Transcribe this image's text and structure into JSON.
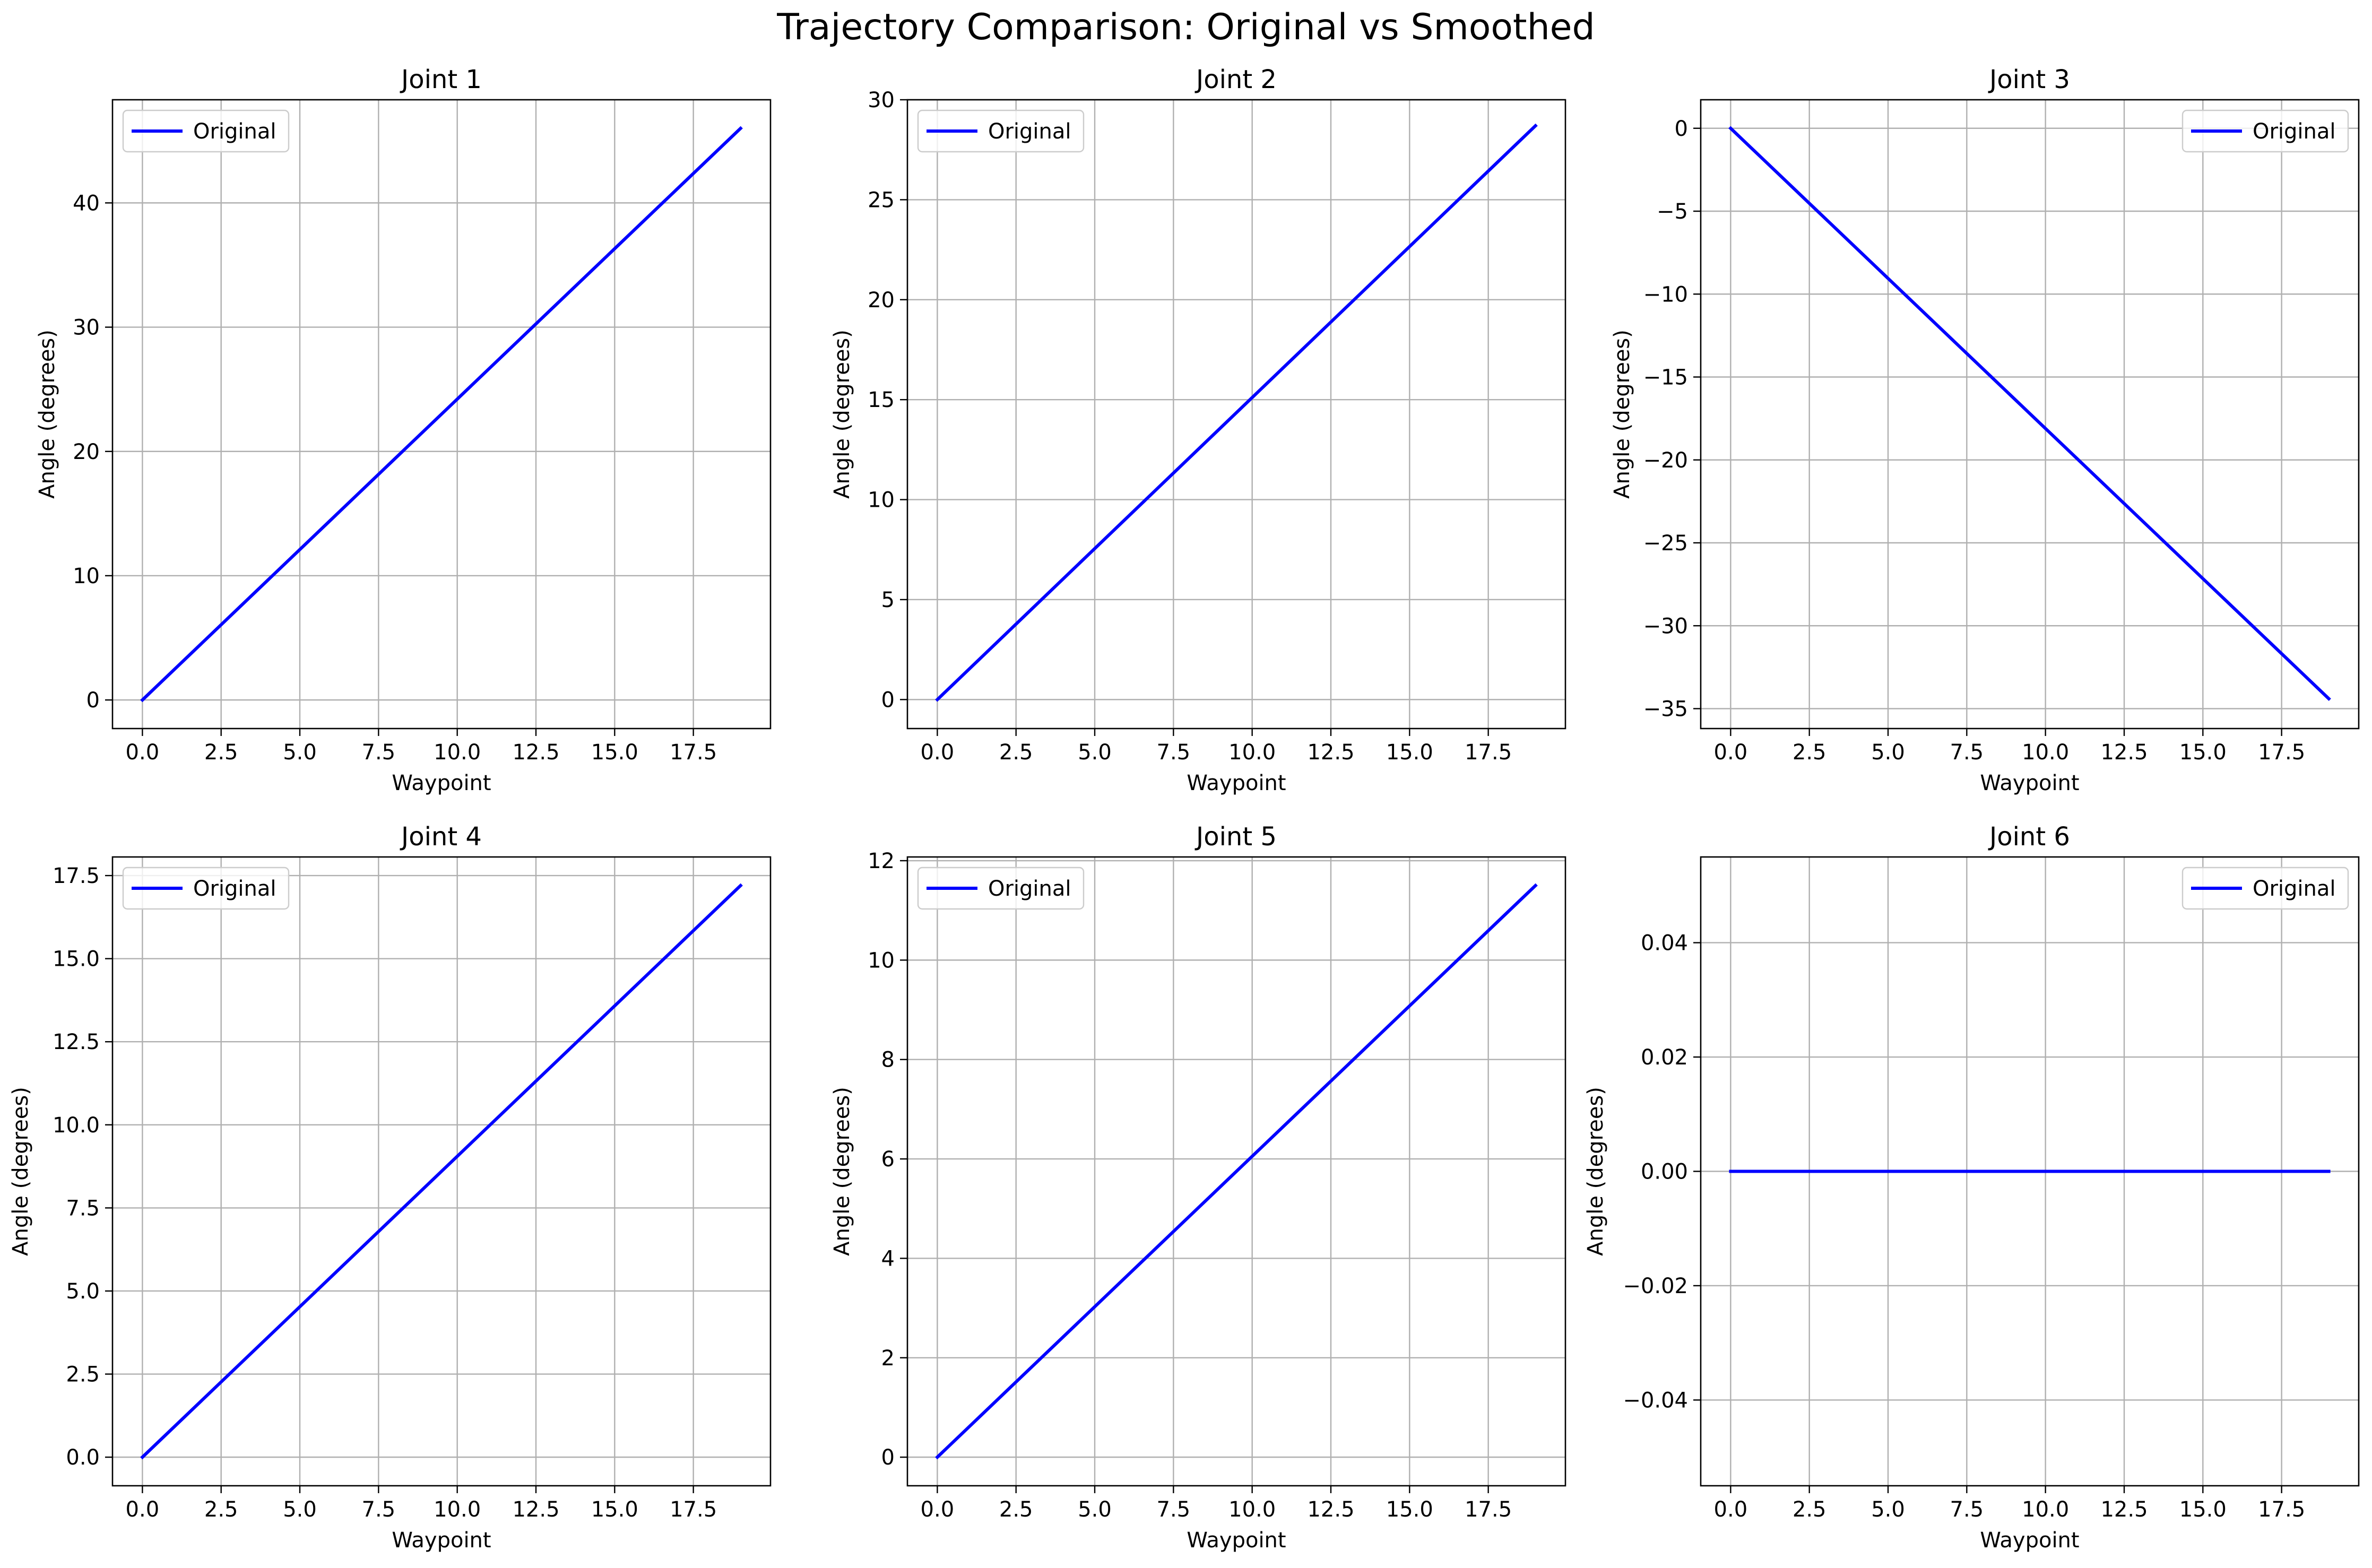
{
  "figure": {
    "title": "Trajectory Comparison: Original vs Smoothed"
  },
  "colors": {
    "series": "#0000ff",
    "grid": "#b0b0b0",
    "axes": "#000000",
    "legend_border": "#cccccc"
  },
  "chart_data": [
    {
      "type": "line",
      "title": "Joint 1",
      "xlabel": "Waypoint",
      "ylabel": "Angle (degrees)",
      "xlim": [
        -0.95,
        19.95
      ],
      "ylim": [
        -2.3,
        48.3
      ],
      "xticks": [
        0,
        2.5,
        5,
        7.5,
        10,
        12.5,
        15,
        17.5
      ],
      "xtick_labels": [
        "0.0",
        "2.5",
        "5.0",
        "7.5",
        "10.0",
        "12.5",
        "15.0",
        "17.5"
      ],
      "yticks": [
        0,
        10,
        20,
        30,
        40
      ],
      "ytick_labels": [
        "0",
        "10",
        "20",
        "30",
        "40"
      ],
      "grid": true,
      "legend": "upper-left",
      "series": [
        {
          "name": "Original",
          "x": [
            0,
            19
          ],
          "y": [
            0,
            46
          ]
        }
      ]
    },
    {
      "type": "line",
      "title": "Joint 2",
      "xlabel": "Waypoint",
      "ylabel": "Angle (degrees)",
      "xlim": [
        -0.95,
        19.95
      ],
      "ylim": [
        -1.45,
        30.0
      ],
      "xticks": [
        0,
        2.5,
        5,
        7.5,
        10,
        12.5,
        15,
        17.5
      ],
      "xtick_labels": [
        "0.0",
        "2.5",
        "5.0",
        "7.5",
        "10.0",
        "12.5",
        "15.0",
        "17.5"
      ],
      "yticks": [
        0,
        5,
        10,
        15,
        20,
        25,
        30
      ],
      "ytick_labels": [
        "0",
        "5",
        "10",
        "15",
        "20",
        "25",
        "30"
      ],
      "grid": true,
      "legend": "upper-left",
      "series": [
        {
          "name": "Original",
          "x": [
            0,
            19
          ],
          "y": [
            0,
            28.7
          ]
        }
      ]
    },
    {
      "type": "line",
      "title": "Joint 3",
      "xlabel": "Waypoint",
      "ylabel": "Angle (degrees)",
      "xlim": [
        -0.95,
        19.95
      ],
      "ylim": [
        -36.2,
        1.72
      ],
      "xticks": [
        0,
        2.5,
        5,
        7.5,
        10,
        12.5,
        15,
        17.5
      ],
      "xtick_labels": [
        "0.0",
        "2.5",
        "5.0",
        "7.5",
        "10.0",
        "12.5",
        "15.0",
        "17.5"
      ],
      "yticks": [
        0,
        -5,
        -10,
        -15,
        -20,
        -25,
        -30,
        -35
      ],
      "ytick_labels": [
        "0",
        "−5",
        "−10",
        "−15",
        "−20",
        "−25",
        "−30",
        "−35"
      ],
      "grid": true,
      "legend": "upper-right",
      "series": [
        {
          "name": "Original",
          "x": [
            0,
            19
          ],
          "y": [
            0,
            -34.4
          ]
        }
      ]
    },
    {
      "type": "line",
      "title": "Joint 4",
      "xlabel": "Waypoint",
      "ylabel": "Angle (degrees)",
      "xlim": [
        -0.95,
        19.95
      ],
      "ylim": [
        -0.86,
        18.06
      ],
      "xticks": [
        0,
        2.5,
        5,
        7.5,
        10,
        12.5,
        15,
        17.5
      ],
      "xtick_labels": [
        "0.0",
        "2.5",
        "5.0",
        "7.5",
        "10.0",
        "12.5",
        "15.0",
        "17.5"
      ],
      "yticks": [
        0,
        2.5,
        5,
        7.5,
        10,
        12.5,
        15,
        17.5
      ],
      "ytick_labels": [
        "0.0",
        "2.5",
        "5.0",
        "7.5",
        "10.0",
        "12.5",
        "15.0",
        "17.5"
      ],
      "grid": true,
      "legend": "upper-left",
      "series": [
        {
          "name": "Original",
          "x": [
            0,
            19
          ],
          "y": [
            0,
            17.2
          ]
        }
      ]
    },
    {
      "type": "line",
      "title": "Joint 5",
      "xlabel": "Waypoint",
      "ylabel": "Angle (degrees)",
      "xlim": [
        -0.95,
        19.95
      ],
      "ylim": [
        -0.575,
        12.075
      ],
      "xticks": [
        0,
        2.5,
        5,
        7.5,
        10,
        12.5,
        15,
        17.5
      ],
      "xtick_labels": [
        "0.0",
        "2.5",
        "5.0",
        "7.5",
        "10.0",
        "12.5",
        "15.0",
        "17.5"
      ],
      "yticks": [
        0,
        2,
        4,
        6,
        8,
        10,
        12
      ],
      "ytick_labels": [
        "0",
        "2",
        "4",
        "6",
        "8",
        "10",
        "12"
      ],
      "grid": true,
      "legend": "upper-left",
      "series": [
        {
          "name": "Original",
          "x": [
            0,
            19
          ],
          "y": [
            0,
            11.5
          ]
        }
      ]
    },
    {
      "type": "line",
      "title": "Joint 6",
      "xlabel": "Waypoint",
      "ylabel": "Angle (degrees)",
      "xlim": [
        -0.95,
        19.95
      ],
      "ylim": [
        -0.055,
        0.055
      ],
      "xticks": [
        0,
        2.5,
        5,
        7.5,
        10,
        12.5,
        15,
        17.5
      ],
      "xtick_labels": [
        "0.0",
        "2.5",
        "5.0",
        "7.5",
        "10.0",
        "12.5",
        "15.0",
        "17.5"
      ],
      "yticks": [
        -0.04,
        -0.02,
        0,
        0.02,
        0.04
      ],
      "ytick_labels": [
        "−0.04",
        "−0.02",
        "0.00",
        "0.02",
        "0.04"
      ],
      "grid": true,
      "legend": "upper-right",
      "series": [
        {
          "name": "Original",
          "x": [
            0,
            19
          ],
          "y": [
            0,
            0
          ]
        }
      ]
    }
  ]
}
